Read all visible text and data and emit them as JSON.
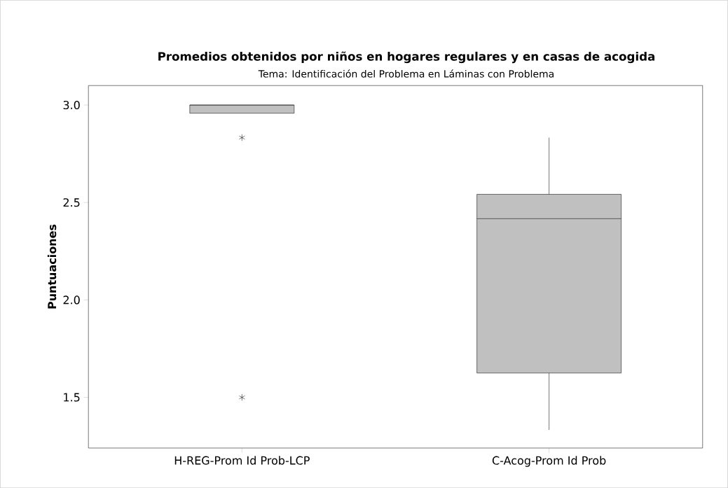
{
  "chart_data": {
    "type": "box",
    "title": "Promedios obtenidos por niños en hogares regulares y en casas de acogida",
    "subtitle": "Tema: Identificación del Problema en Láminas con Problema",
    "ylabel": "Puntuaciones",
    "categories": [
      "H-REG-Prom Id Prob-LCP",
      "C-Acog-Prom Id Prob"
    ],
    "color": "#c0c0c0",
    "boxes": [
      {
        "low": 2.958,
        "q1": 2.958,
        "median": 3.0,
        "q3": 3.0,
        "high": 3.0,
        "outliers": [
          2.833,
          1.5
        ]
      },
      {
        "low": 1.333,
        "q1": 1.625,
        "median": 2.417,
        "q3": 2.542,
        "high": 2.833
      }
    ],
    "ylim": [
      1.24,
      3.1
    ],
    "yticks": [
      {
        "value": 1.5,
        "label": "1.5"
      },
      {
        "value": 2,
        "label": "2.0"
      },
      {
        "value": 2.5,
        "label": "2.5"
      },
      {
        "value": 3,
        "label": "3.0"
      }
    ],
    "grid": false
  }
}
